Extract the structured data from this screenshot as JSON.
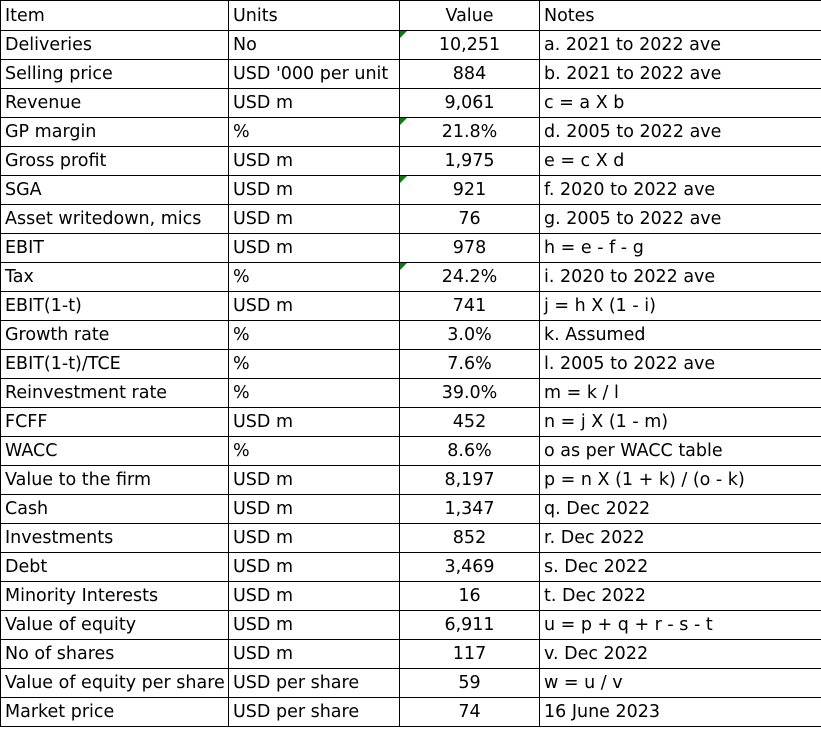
{
  "header": {
    "item": "Item",
    "units": "Units",
    "value": "Value",
    "notes": "Notes"
  },
  "rows": [
    {
      "item": "Deliveries",
      "units": "No",
      "value": "10,251",
      "notes": "a. 2021 to 2022 ave",
      "flag": true
    },
    {
      "item": "Selling price",
      "units": "USD '000 per unit",
      "value": "884",
      "notes": "b. 2021 to 2022 ave",
      "flag": false
    },
    {
      "item": "Revenue",
      "units": "USD m",
      "value": "9,061",
      "notes": "c = a X b",
      "flag": false
    },
    {
      "item": "GP margin",
      "units": "%",
      "value": "21.8%",
      "notes": "d. 2005 to 2022 ave",
      "flag": true
    },
    {
      "item": "Gross profit",
      "units": "USD m",
      "value": "1,975",
      "notes": "e = c X d",
      "flag": false
    },
    {
      "item": "SGA",
      "units": "USD m",
      "value": "921",
      "notes": "f. 2020 to 2022 ave",
      "flag": true
    },
    {
      "item": "Asset writedown, mics",
      "units": "USD m",
      "value": "76",
      "notes": "g. 2005 to 2022 ave",
      "flag": false
    },
    {
      "item": "EBIT",
      "units": "USD m",
      "value": "978",
      "notes": "h = e - f - g",
      "flag": false
    },
    {
      "item": "Tax",
      "units": "%",
      "value": "24.2%",
      "notes": "i. 2020 to 2022 ave",
      "flag": true
    },
    {
      "item": "EBIT(1-t)",
      "units": "USD m",
      "value": "741",
      "notes": "j = h X (1 - i)",
      "flag": false
    },
    {
      "item": "Growth rate",
      "units": "%",
      "value": "3.0%",
      "notes": "k. Assumed",
      "flag": false
    },
    {
      "item": "EBIT(1-t)/TCE",
      "units": "%",
      "value": "7.6%",
      "notes": "l. 2005 to 2022 ave",
      "flag": false
    },
    {
      "item": "Reinvestment rate",
      "units": "%",
      "value": "39.0%",
      "notes": "m = k / l",
      "flag": false
    },
    {
      "item": "FCFF",
      "units": "USD m",
      "value": "452",
      "notes": "n = j X (1 - m)",
      "flag": false
    },
    {
      "item": "WACC",
      "units": "%",
      "value": "8.6%",
      "notes": "o as per WACC table",
      "flag": false
    },
    {
      "item": "Value to the firm",
      "units": "USD m",
      "value": "8,197",
      "notes": "p = n X (1 + k) / (o - k)",
      "flag": false
    },
    {
      "item": "Cash",
      "units": "USD m",
      "value": "1,347",
      "notes": "q. Dec 2022",
      "flag": false
    },
    {
      "item": "Investments",
      "units": "USD m",
      "value": "852",
      "notes": "r. Dec 2022",
      "flag": false
    },
    {
      "item": "Debt",
      "units": "USD m",
      "value": "3,469",
      "notes": "s. Dec 2022",
      "flag": false
    },
    {
      "item": "Minority Interests",
      "units": "USD m",
      "value": "16",
      "notes": "t. Dec 2022",
      "flag": false
    },
    {
      "item": "Value of equity",
      "units": "USD m",
      "value": "6,911",
      "notes": "u = p + q + r - s - t",
      "flag": false
    },
    {
      "item": "No of shares",
      "units": "USD m",
      "value": "117",
      "notes": "v. Dec 2022",
      "flag": false
    },
    {
      "item": "Value of equity per share",
      "units": "USD per share",
      "value": "59",
      "notes": "w = u / v",
      "flag": false
    },
    {
      "item": "Market price",
      "units": "USD per share",
      "value": "74",
      "notes": "16 June 2023",
      "flag": false
    }
  ],
  "colors": {
    "comment_indicator": "#107c10"
  }
}
